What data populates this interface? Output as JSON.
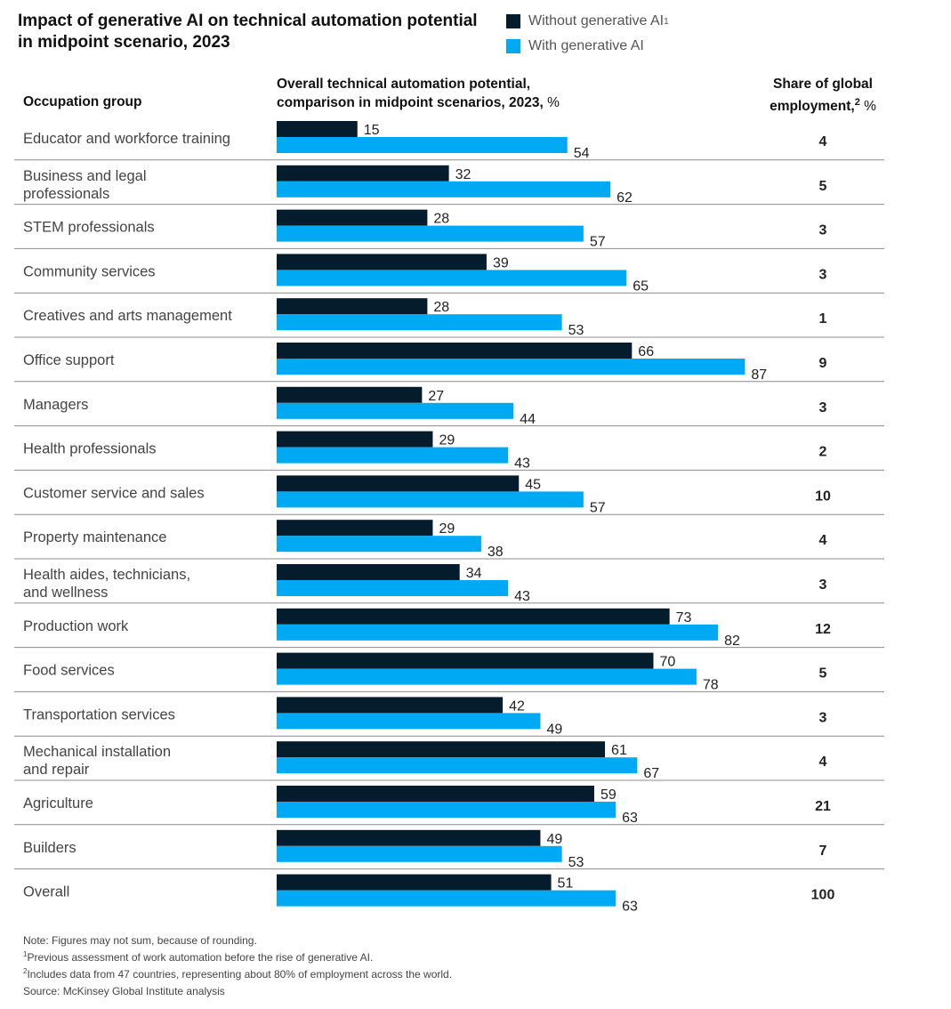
{
  "title": "Impact of generative AI on technical automation potential in midpoint scenario, 2023",
  "legend": {
    "without_label": "Without generative AI",
    "without_sup": "1",
    "with_label": "With generative AI"
  },
  "headers": {
    "occupation": "Occupation group",
    "overall_line1": "Overall technical automation potential,",
    "overall_line2": "comparison in midpoint scenarios, 2023,",
    "overall_unit": "%",
    "share_line1": "Share of global",
    "share_line2": "employment,",
    "share_sup": "2",
    "share_unit": "%"
  },
  "colors": {
    "without": "#051c2c",
    "with": "#00a9f4",
    "divider": "#8c8c8c",
    "label": "#444444"
  },
  "chart_data": {
    "type": "bar",
    "orientation": "horizontal",
    "categories": [
      [
        "Educator and workforce training"
      ],
      [
        "Business and legal",
        "professionals"
      ],
      [
        "STEM professionals"
      ],
      [
        "Community services"
      ],
      [
        "Creatives and arts management"
      ],
      [
        "Office support"
      ],
      [
        "Managers"
      ],
      [
        "Health professionals"
      ],
      [
        "Customer service and sales"
      ],
      [
        "Property maintenance"
      ],
      [
        "Health aides, technicians,",
        "and wellness"
      ],
      [
        "Production work"
      ],
      [
        "Food services"
      ],
      [
        "Transportation services"
      ],
      [
        "Mechanical installation",
        "and repair"
      ],
      [
        "Agriculture"
      ],
      [
        "Builders"
      ],
      [
        "Overall"
      ]
    ],
    "series": [
      {
        "name": "Without generative AI",
        "values": [
          15,
          32,
          28,
          39,
          28,
          66,
          27,
          29,
          45,
          29,
          34,
          73,
          70,
          42,
          61,
          59,
          49,
          51
        ]
      },
      {
        "name": "With generative AI",
        "values": [
          54,
          62,
          57,
          65,
          53,
          87,
          44,
          43,
          57,
          38,
          43,
          82,
          78,
          49,
          67,
          63,
          53,
          63
        ]
      }
    ],
    "share_of_global_employment": [
      4,
      5,
      3,
      3,
      1,
      9,
      3,
      2,
      10,
      4,
      3,
      12,
      5,
      3,
      4,
      21,
      7,
      100
    ],
    "xlim": [
      0,
      100
    ]
  },
  "notes": [
    "Note: Figures may not sum, because of rounding.",
    "Previous assessment of work automation before the rise of generative AI.",
    "Includes data from 47 countries, representing about 80% of employment across the world.",
    "Source: McKinsey Global Institute analysis"
  ],
  "note_markers": [
    "",
    "1",
    "2",
    ""
  ]
}
